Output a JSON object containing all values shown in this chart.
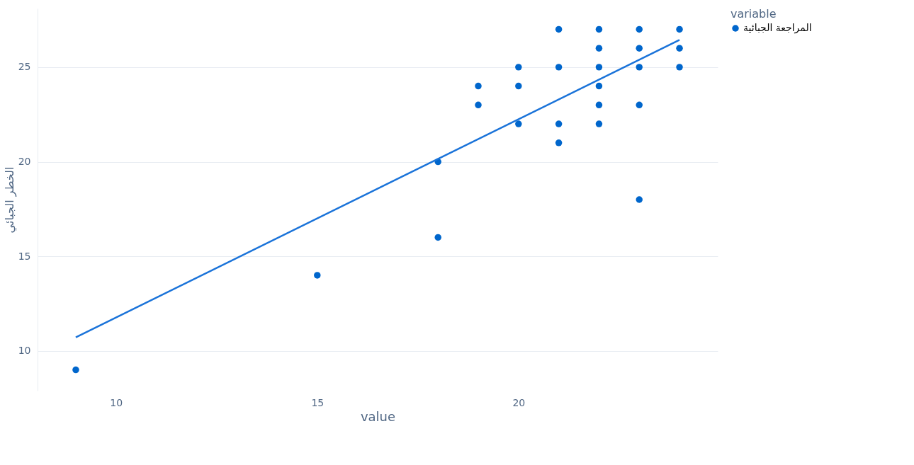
{
  "chart_data": {
    "type": "scatter",
    "xlabel": "value",
    "ylabel": "الخطر الجبائي",
    "legend_title": "variable",
    "xlim": [
      8.05,
      24.95
    ],
    "ylim": [
      7.9,
      28.1
    ],
    "xticks": [
      10,
      15,
      20
    ],
    "yticks": [
      10,
      15,
      20,
      25
    ],
    "grid": "y",
    "legend": "top right",
    "marker": "circle",
    "series": [
      {
        "name": "المراجعة الجبائية",
        "type": "scatter",
        "color": "#0066cc",
        "x": [
          9,
          15,
          18,
          18,
          19,
          19,
          20,
          20,
          20,
          21,
          21,
          21,
          21,
          22,
          22,
          22,
          22,
          22,
          22,
          23,
          23,
          23,
          23,
          23,
          24,
          24,
          24
        ],
        "values": [
          9,
          14,
          20,
          16,
          24,
          23,
          25,
          24,
          22,
          27,
          25,
          22,
          21,
          27,
          26,
          25,
          24,
          23,
          22,
          27,
          26,
          25,
          23,
          18,
          27,
          26,
          25
        ]
      },
      {
        "type": "line",
        "marker": "none",
        "color": "#1a73d9",
        "x": [
          9,
          24
        ],
        "values": [
          10.72,
          26.44
        ]
      }
    ]
  }
}
